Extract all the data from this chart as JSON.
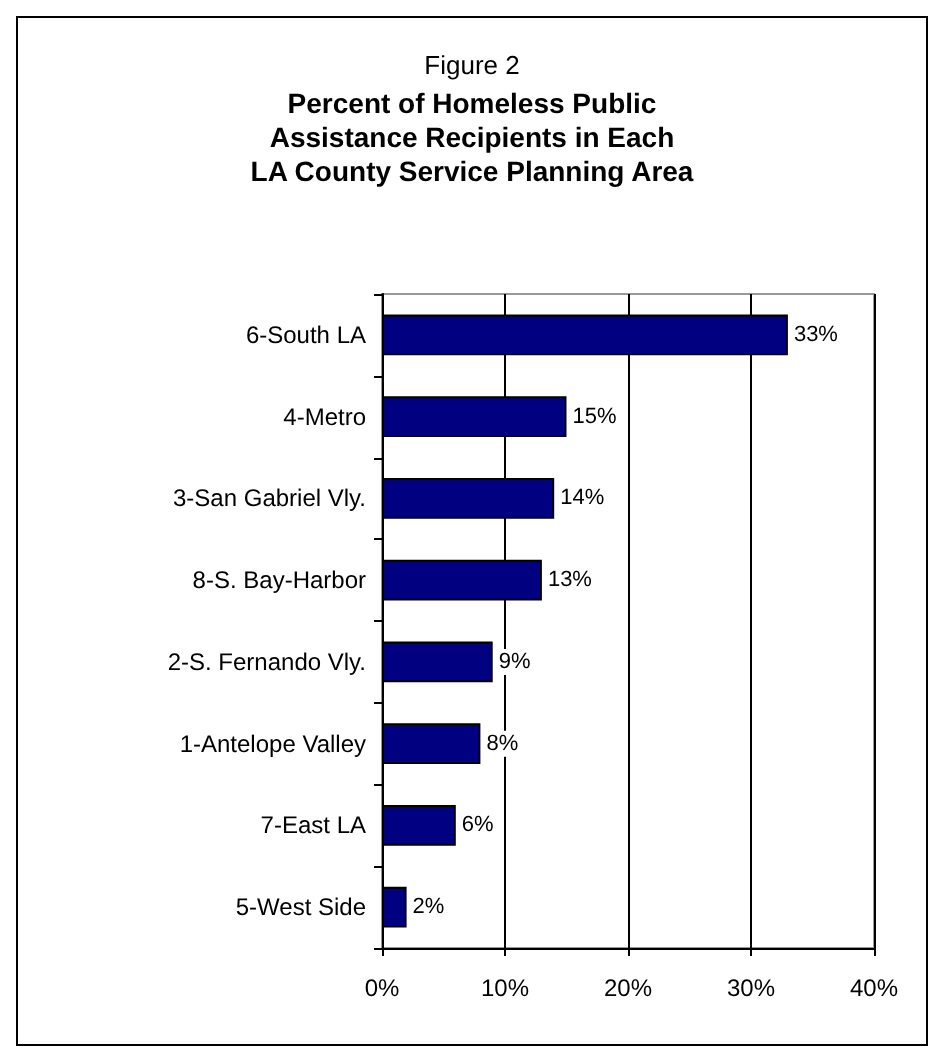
{
  "chart_data": {
    "type": "bar",
    "orientation": "horizontal",
    "title": "Figure 2",
    "subtitle": "Percent of Homeless Public\nAssistance Recipients in Each\nLA County Service Planning Area",
    "categories": [
      "6-South LA",
      "4-Metro",
      "3-San Gabriel Vly.",
      "8-S. Bay-Harbor",
      "2-S. Fernando Vly.",
      "1-Antelope Valley",
      "7-East LA",
      "5-West Side"
    ],
    "values": [
      33,
      15,
      14,
      13,
      9,
      8,
      6,
      2
    ],
    "value_labels": [
      "33%",
      "15%",
      "14%",
      "13%",
      "9%",
      "8%",
      "6%",
      "2%"
    ],
    "color": "#000080",
    "xlim": [
      0,
      40
    ],
    "xticks": [
      {
        "value": 0,
        "label": "0%"
      },
      {
        "value": 10,
        "label": "10%"
      },
      {
        "value": 20,
        "label": "20%"
      },
      {
        "value": 30,
        "label": "30%"
      },
      {
        "value": 40,
        "label": "40%"
      }
    ],
    "grid": "x"
  }
}
